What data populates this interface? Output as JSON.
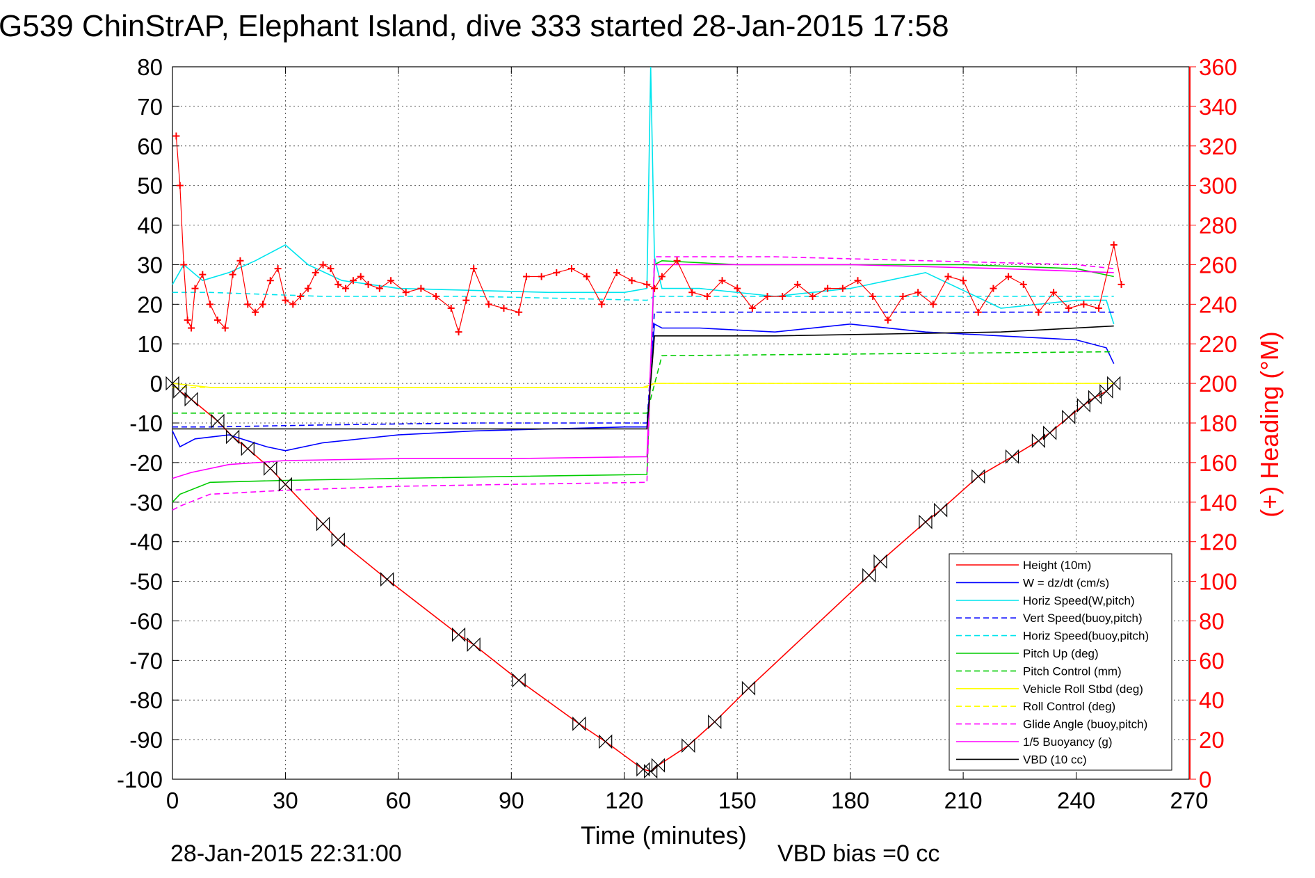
{
  "chart_data": {
    "type": "line",
    "title": "G539 ChinStrAP, Elephant Island, dive 333 started 28-Jan-2015 17:58",
    "xlabel": "Time (minutes)",
    "ylabel": "",
    "ylabel_right": "(+) Heading (°M)",
    "xlim": [
      0,
      270
    ],
    "ylim": [
      -100,
      80
    ],
    "ylim_right": [
      0,
      360
    ],
    "x_ticks": [
      "0",
      "30",
      "60",
      "90",
      "120",
      "150",
      "180",
      "210",
      "240",
      "270"
    ],
    "y_ticks": [
      "80",
      "70",
      "60",
      "50",
      "40",
      "30",
      "20",
      "10",
      "0",
      "-10",
      "-20",
      "-30",
      "-40",
      "-50",
      "-60",
      "-70",
      "-80",
      "-90",
      "-100"
    ],
    "y_ticks_right": [
      "360",
      "340",
      "320",
      "300",
      "280",
      "260",
      "240",
      "220",
      "200",
      "180",
      "160",
      "140",
      "120",
      "100",
      "80",
      "60",
      "40",
      "20",
      "0"
    ],
    "grid": true,
    "legend_position": "bottom-right",
    "footer_left": "28-Jan-2015 22:31:00",
    "footer_right": "VBD bias =0 cc",
    "series": [
      {
        "name": "Height (10m)",
        "color": "#ff0000",
        "dash": "solid",
        "x": [
          0,
          2,
          5,
          12,
          16,
          20,
          26,
          30,
          40,
          44,
          57,
          76,
          80,
          92,
          108,
          115,
          125,
          127,
          129,
          137,
          144,
          153,
          185,
          188,
          200,
          204,
          214,
          223,
          230,
          233,
          238,
          242,
          245,
          248,
          250
        ],
        "y": [
          0,
          -2,
          -4,
          -9.5,
          -13.5,
          -16.5,
          -21.5,
          -25.5,
          -35.5,
          -39.5,
          -49.5,
          -63.5,
          -66,
          -75,
          -86,
          -90.5,
          -97.5,
          -98,
          -96.5,
          -91.5,
          -85.5,
          -77,
          -48.5,
          -45,
          -35,
          -32,
          -23.5,
          -18.5,
          -14.5,
          -12.5,
          -8.5,
          -5.5,
          -3.5,
          -2,
          0
        ]
      },
      {
        "name": "W = dz/dt (cm/s)",
        "color": "#0000ff",
        "dash": "solid",
        "x": [
          0,
          2,
          6,
          15,
          25,
          30,
          40,
          60,
          80,
          100,
          120,
          126,
          128,
          130,
          140,
          160,
          180,
          200,
          220,
          240,
          248,
          250
        ],
        "y": [
          -12,
          -16,
          -14,
          -13,
          -16,
          -17,
          -15,
          -13,
          -12,
          -11.5,
          -11,
          -11,
          15,
          14,
          14,
          13,
          15,
          13,
          12,
          11,
          9,
          5
        ]
      },
      {
        "name": "Horiz Speed(W,pitch)",
        "color": "#00e5ee",
        "dash": "solid",
        "x": [
          0,
          3,
          8,
          15,
          22,
          30,
          36,
          45,
          60,
          80,
          100,
          120,
          126,
          127,
          128,
          130,
          140,
          160,
          180,
          200,
          220,
          240,
          248,
          250
        ],
        "y": [
          25,
          30,
          26,
          28,
          31,
          35,
          30,
          26,
          24,
          23.5,
          23,
          23,
          24,
          80,
          32,
          24,
          24,
          22,
          24,
          28,
          19,
          21,
          21,
          15
        ]
      },
      {
        "name": "Vert Speed(buoy,pitch)",
        "color": "#0000ff",
        "dash": "dashed",
        "x": [
          0,
          10,
          40,
          80,
          126,
          128,
          140,
          180,
          220,
          250
        ],
        "y": [
          -11,
          -11,
          -10.5,
          -10,
          -10,
          18,
          18,
          18,
          18,
          18
        ]
      },
      {
        "name": "Horiz Speed(buoy,pitch)",
        "color": "#00e5ee",
        "dash": "dashed",
        "x": [
          0,
          10,
          40,
          80,
          126,
          128,
          140,
          180,
          220,
          250
        ],
        "y": [
          23,
          23,
          22,
          22,
          21,
          22,
          22,
          22,
          22,
          22
        ]
      },
      {
        "name": "Pitch Up (deg)",
        "color": "#00cc00",
        "dash": "solid",
        "x": [
          0,
          2,
          10,
          30,
          60,
          90,
          126,
          128,
          130,
          150,
          180,
          210,
          240,
          250
        ],
        "y": [
          -30,
          -28,
          -25,
          -24.5,
          -24,
          -23.5,
          -23,
          30,
          31,
          30,
          30,
          30,
          29,
          27
        ]
      },
      {
        "name": "Pitch Control (mm)",
        "color": "#00cc00",
        "dash": "dashed",
        "x": [
          0,
          126,
          130,
          250
        ],
        "y": [
          -7.5,
          -7.5,
          7,
          8
        ]
      },
      {
        "name": "Vehicle Roll Stbd (deg)",
        "color": "#ffff00",
        "dash": "solid",
        "x": [
          0,
          10,
          60,
          120,
          125,
          128,
          180,
          240,
          250
        ],
        "y": [
          0,
          -1,
          -1,
          -1,
          -1,
          0,
          0,
          0,
          0
        ]
      },
      {
        "name": "Roll Control (deg)",
        "color": "#ffff00",
        "dash": "dashed",
        "x": [
          0,
          126,
          128,
          250
        ],
        "y": [
          -1,
          -1,
          0,
          0
        ]
      },
      {
        "name": "Glide Angle (buoy,pitch)",
        "color": "#ff00ff",
        "dash": "dashed",
        "x": [
          0,
          2,
          10,
          30,
          60,
          90,
          126,
          128,
          130,
          160,
          200,
          240,
          250
        ],
        "y": [
          -32,
          -31,
          -28,
          -27,
          -26,
          -25.5,
          -25,
          32,
          32,
          32,
          31,
          30,
          29
        ]
      },
      {
        "name": "1/5 Buoyancy (g)",
        "color": "#ff00ff",
        "dash": "solid",
        "x": [
          0,
          5,
          15,
          30,
          60,
          90,
          126,
          128,
          140,
          180,
          220,
          250
        ],
        "y": [
          -24,
          -22.5,
          -20.5,
          -19.5,
          -19,
          -19,
          -18.5,
          30,
          30,
          30,
          29,
          28
        ]
      },
      {
        "name": "VBD (10 cc)",
        "color": "#000000",
        "dash": "solid",
        "x": [
          0,
          2,
          126,
          128,
          160,
          220,
          250
        ],
        "y": [
          -11.5,
          -11.5,
          -11.5,
          12,
          12,
          13,
          14.5
        ]
      }
    ],
    "heading_series": {
      "name": "(+) Heading (°M)",
      "color": "#ff0000",
      "axis": "right",
      "marker": "+",
      "x": [
        1,
        2,
        3,
        4,
        5,
        6,
        8,
        10,
        12,
        14,
        16,
        18,
        20,
        22,
        24,
        26,
        28,
        30,
        32,
        34,
        36,
        38,
        40,
        42,
        44,
        46,
        48,
        50,
        52,
        55,
        58,
        62,
        66,
        70,
        74,
        76,
        78,
        80,
        84,
        88,
        92,
        94,
        98,
        102,
        106,
        110,
        114,
        118,
        122,
        126,
        128,
        130,
        134,
        138,
        142,
        146,
        150,
        154,
        158,
        162,
        166,
        170,
        174,
        178,
        182,
        186,
        190,
        194,
        198,
        202,
        206,
        210,
        214,
        218,
        222,
        226,
        230,
        234,
        238,
        242,
        246,
        250,
        252
      ],
      "y": [
        325,
        300,
        260,
        232,
        228,
        248,
        255,
        240,
        232,
        228,
        255,
        262,
        240,
        236,
        240,
        252,
        258,
        242,
        240,
        244,
        248,
        256,
        260,
        258,
        250,
        248,
        252,
        254,
        250,
        248,
        252,
        246,
        248,
        244,
        238,
        226,
        242,
        258,
        240,
        238,
        236,
        254,
        254,
        256,
        258,
        254,
        240,
        256,
        252,
        250,
        248,
        254,
        262,
        246,
        244,
        252,
        248,
        238,
        244,
        244,
        250,
        244,
        248,
        248,
        252,
        244,
        232,
        244,
        246,
        240,
        254,
        252,
        236,
        248,
        254,
        250,
        236,
        246,
        238,
        240,
        238,
        270,
        250
      ]
    }
  }
}
